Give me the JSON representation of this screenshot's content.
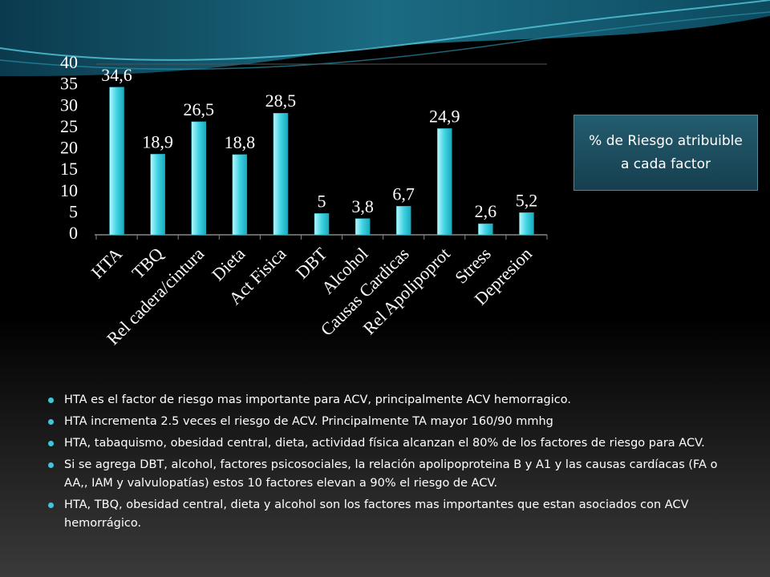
{
  "chart_data": {
    "type": "bar",
    "categories": [
      "HTA",
      "TBQ",
      "Rel cadera/cintura",
      "Dieta",
      "Act Fisica",
      "DBT",
      "Alcohol",
      "Causas Cardicas",
      "Rel Apolipoprot",
      "Stress",
      "Depresion"
    ],
    "series": [
      {
        "name": "% de Riesgo atribuible a cada factor",
        "color": "#3fd3e3",
        "values": [
          34.6,
          18.9,
          26.5,
          18.8,
          28.5,
          5,
          3.8,
          6.7,
          24.9,
          2.6,
          5.2
        ],
        "value_labels": [
          "34,6",
          "18,9",
          "26,5",
          "18,8",
          "28,5",
          "5",
          "3,8",
          "6,7",
          "24,9",
          "2,6",
          "5,2"
        ]
      }
    ],
    "ylim": [
      0,
      40
    ],
    "yticks": [
      0,
      5,
      10,
      15,
      20,
      25,
      30,
      35,
      40
    ],
    "grid": false
  },
  "bullets": [
    "HTA es el factor de riesgo mas importante para ACV, principalmente ACV hemorragico.",
    "HTA incrementa 2.5 veces el riesgo de ACV. Principalmente TA mayor 160/90 mmhg",
    "HTA, tabaquismo, obesidad central, dieta, actividad física alcanzan el 80% de los factores de riesgo para ACV.",
    "Si se agrega DBT, alcohol, factores psicosociales, la relación apolipoproteina B y A1 y las causas cardíacas (FA o AA,, IAM y valvulopatías) estos 10 factores elevan a 90% el riesgo de ACV.",
    "HTA, TBQ, obesidad central, dieta y alcohol son los factores mas importantes que estan asociados con ACV hemorrágico."
  ]
}
